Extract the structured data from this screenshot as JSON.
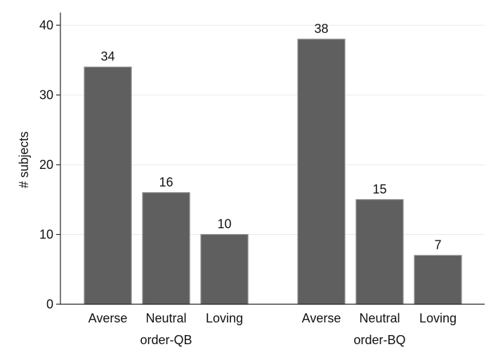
{
  "chart_data": {
    "type": "bar",
    "title": "",
    "ylabel": "# subjects",
    "ylim": [
      0,
      40
    ],
    "yticks": [
      0,
      10,
      20,
      30,
      40
    ],
    "grid": true,
    "colors": {
      "bar": "#5f5f5f",
      "bar_edge": "#8c8c8c",
      "grid": "#e6ebee"
    },
    "groups": [
      {
        "label": "order-QB",
        "categories": [
          "Averse",
          "Neutral",
          "Loving"
        ],
        "values": [
          34,
          16,
          10
        ]
      },
      {
        "label": "order-BQ",
        "categories": [
          "Averse",
          "Neutral",
          "Loving"
        ],
        "values": [
          38,
          15,
          7
        ]
      }
    ]
  }
}
